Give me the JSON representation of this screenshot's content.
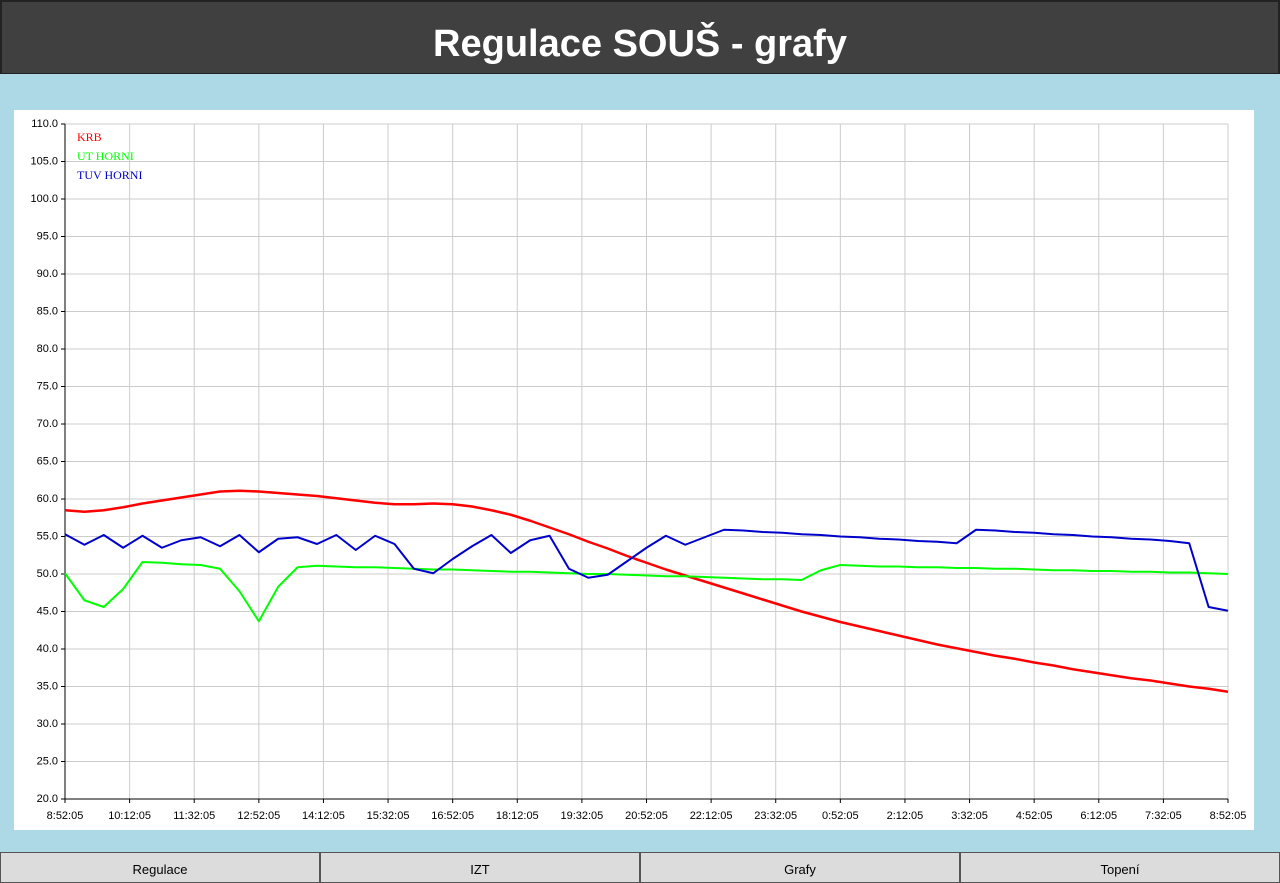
{
  "header": {
    "title": "Regulace SOUŠ - grafy"
  },
  "chart_data": {
    "type": "line",
    "x": [
      0,
      24,
      48,
      72,
      96,
      120,
      144,
      168,
      192,
      216,
      240,
      264,
      288,
      312,
      336,
      360,
      384,
      408,
      432,
      456,
      480,
      504,
      528,
      552,
      576,
      600,
      624,
      648,
      672,
      696,
      720,
      744,
      768,
      792,
      816,
      840,
      864,
      888,
      912,
      936,
      960,
      984,
      1008,
      1032,
      1056,
      1080,
      1104,
      1128,
      1152,
      1176,
      1200,
      1224,
      1248,
      1272,
      1296,
      1320,
      1344,
      1368,
      1392,
      1416,
      1440
    ],
    "xlim": [
      0,
      1440
    ],
    "xticks": [
      {
        "value": 0,
        "label": "8:52:05"
      },
      {
        "value": 80,
        "label": "10:12:05"
      },
      {
        "value": 160,
        "label": "11:32:05"
      },
      {
        "value": 240,
        "label": "12:52:05"
      },
      {
        "value": 320,
        "label": "14:12:05"
      },
      {
        "value": 400,
        "label": "15:32:05"
      },
      {
        "value": 480,
        "label": "16:52:05"
      },
      {
        "value": 560,
        "label": "18:12:05"
      },
      {
        "value": 640,
        "label": "19:32:05"
      },
      {
        "value": 720,
        "label": "20:52:05"
      },
      {
        "value": 800,
        "label": "22:12:05"
      },
      {
        "value": 880,
        "label": "23:32:05"
      },
      {
        "value": 960,
        "label": "0:52:05"
      },
      {
        "value": 1040,
        "label": "2:12:05"
      },
      {
        "value": 1120,
        "label": "3:32:05"
      },
      {
        "value": 1200,
        "label": "4:52:05"
      },
      {
        "value": 1280,
        "label": "6:12:05"
      },
      {
        "value": 1360,
        "label": "7:32:05"
      },
      {
        "value": 1440,
        "label": "8:52:05"
      }
    ],
    "ylim": [
      20,
      110
    ],
    "yticks": [
      {
        "value": 20,
        "label": "20.0"
      },
      {
        "value": 25,
        "label": "25.0"
      },
      {
        "value": 30,
        "label": "30.0"
      },
      {
        "value": 35,
        "label": "35.0"
      },
      {
        "value": 40,
        "label": "40.0"
      },
      {
        "value": 45,
        "label": "45.0"
      },
      {
        "value": 50,
        "label": "50.0"
      },
      {
        "value": 55,
        "label": "55.0"
      },
      {
        "value": 60,
        "label": "60.0"
      },
      {
        "value": 65,
        "label": "65.0"
      },
      {
        "value": 70,
        "label": "70.0"
      },
      {
        "value": 75,
        "label": "75.0"
      },
      {
        "value": 80,
        "label": "80.0"
      },
      {
        "value": 85,
        "label": "85.0"
      },
      {
        "value": 90,
        "label": "90.0"
      },
      {
        "value": 95,
        "label": "95.0"
      },
      {
        "value": 100,
        "label": "100.0"
      },
      {
        "value": 105,
        "label": "105.0"
      },
      {
        "value": 110,
        "label": "110.0"
      }
    ],
    "grid": true,
    "legend": "top-left",
    "series": [
      {
        "name": "KRB",
        "color": "#ff0000",
        "values": [
          58.5,
          58.3,
          58.5,
          58.9,
          59.4,
          59.8,
          60.2,
          60.6,
          61.0,
          61.1,
          61.0,
          60.8,
          60.6,
          60.4,
          60.1,
          59.8,
          59.5,
          59.3,
          59.3,
          59.4,
          59.3,
          59.0,
          58.5,
          57.9,
          57.1,
          56.2,
          55.3,
          54.3,
          53.4,
          52.4,
          51.5,
          50.6,
          49.8,
          49.0,
          48.2,
          47.4,
          46.6,
          45.8,
          45.0,
          44.3,
          43.6,
          43.0,
          42.4,
          41.8,
          41.2,
          40.6,
          40.1,
          39.6,
          39.1,
          38.7,
          38.2,
          37.8,
          37.3,
          36.9,
          36.5,
          36.1,
          35.8,
          35.4,
          35.0,
          34.7,
          34.3
        ]
      },
      {
        "name": "UT HORNI",
        "color": "#00ff00",
        "values": [
          50.1,
          46.5,
          45.6,
          48.0,
          51.6,
          51.5,
          51.3,
          51.2,
          50.7,
          47.7,
          43.7,
          48.3,
          50.9,
          51.1,
          51.0,
          50.9,
          50.9,
          50.8,
          50.7,
          50.6,
          50.6,
          50.5,
          50.4,
          50.3,
          50.3,
          50.2,
          50.1,
          50.0,
          50.0,
          49.9,
          49.8,
          49.7,
          49.7,
          49.6,
          49.5,
          49.4,
          49.3,
          49.3,
          49.2,
          50.5,
          51.2,
          51.1,
          51.0,
          51.0,
          50.9,
          50.9,
          50.8,
          50.8,
          50.7,
          50.7,
          50.6,
          50.5,
          50.5,
          50.4,
          50.4,
          50.3,
          50.3,
          50.2,
          50.2,
          50.1,
          50.0
        ]
      },
      {
        "name": "TUV HORNI",
        "color": "#0000cc",
        "values": [
          55.3,
          53.9,
          55.2,
          53.5,
          55.1,
          53.5,
          54.5,
          54.9,
          53.7,
          55.2,
          52.9,
          54.7,
          54.9,
          54.0,
          55.2,
          53.2,
          55.1,
          54.0,
          50.7,
          50.1,
          52.0,
          53.7,
          55.2,
          52.8,
          54.5,
          55.1,
          50.7,
          49.5,
          49.9,
          51.7,
          53.5,
          55.1,
          53.9,
          54.9,
          55.9,
          55.8,
          55.6,
          55.5,
          55.3,
          55.2,
          55.0,
          54.9,
          54.7,
          54.6,
          54.4,
          54.3,
          54.1,
          55.9,
          55.8,
          55.6,
          55.5,
          55.3,
          55.2,
          55.0,
          54.9,
          54.7,
          54.6,
          54.4,
          54.1,
          45.6,
          45.1
        ]
      }
    ]
  },
  "nav": [
    "Regulace",
    "IZT",
    "Grafy",
    "Topení"
  ]
}
